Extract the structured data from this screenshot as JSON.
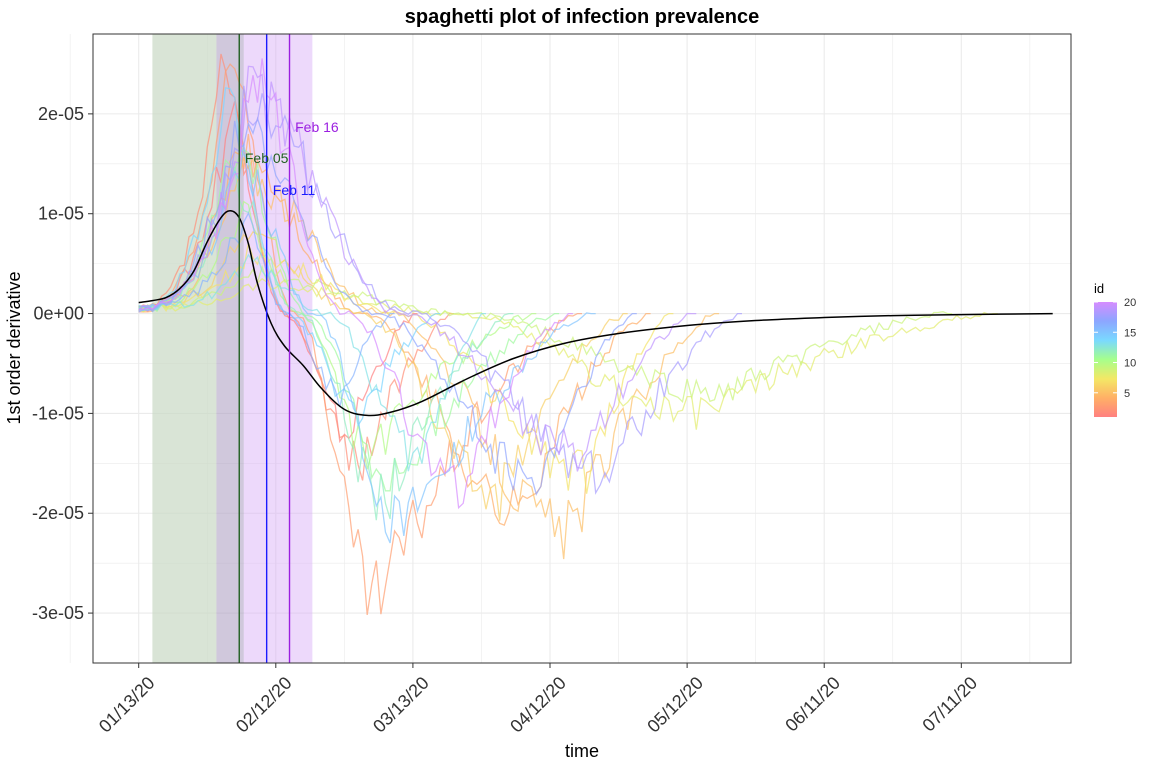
{
  "chart_data": {
    "type": "line",
    "title": "spaghetti plot of infection prevalence",
    "xlabel": "time",
    "ylabel": "1st order derivative",
    "x_range": [
      "2020-01-03",
      "2020-08-04"
    ],
    "ylim": [
      -3.5e-05,
      2.8e-05
    ],
    "x_ticks": [
      {
        "date": "2020-01-13",
        "label": "01/13/20"
      },
      {
        "date": "2020-02-12",
        "label": "02/12/20"
      },
      {
        "date": "2020-03-13",
        "label": "03/13/20"
      },
      {
        "date": "2020-04-12",
        "label": "04/12/20"
      },
      {
        "date": "2020-05-12",
        "label": "05/12/20"
      },
      {
        "date": "2020-06-11",
        "label": "06/11/20"
      },
      {
        "date": "2020-07-11",
        "label": "07/11/20"
      }
    ],
    "y_ticks": [
      {
        "value": 2e-05,
        "label": "2e-05"
      },
      {
        "value": 1e-05,
        "label": "1e-05"
      },
      {
        "value": 0,
        "label": "0e+00"
      },
      {
        "value": -1e-05,
        "label": "-1e-05"
      },
      {
        "value": -2e-05,
        "label": "-2e-05"
      },
      {
        "value": -3e-05,
        "label": "-3e-05"
      }
    ],
    "grid": true,
    "shaded_regions": [
      {
        "start": "2020-01-16",
        "end": "2020-01-30",
        "color": "#c9d8c5",
        "opacity": 0.7
      },
      {
        "start": "2020-01-30",
        "end": "2020-02-05",
        "color": "#a99bc0",
        "opacity": 0.55
      },
      {
        "start": "2020-02-05",
        "end": "2020-02-20",
        "color": "#d8aaf7",
        "opacity": 0.45
      }
    ],
    "vertical_lines": [
      {
        "date": "2020-02-04",
        "color": "#1f5f1f",
        "label": "Feb 05",
        "label_date": "2020-02-10",
        "label_value": 1.56e-05
      },
      {
        "date": "2020-02-10",
        "color": "#1a1aff",
        "label": "Feb 11",
        "label_date": "2020-02-16",
        "label_value": 1.24e-05
      },
      {
        "date": "2020-02-15",
        "color": "#9b1fe0",
        "label": "Feb 16",
        "label_date": "2020-02-21",
        "label_value": 1.87e-05
      }
    ],
    "mean_line": {
      "color": "#000000",
      "points": [
        [
          "2020-01-13",
          1.1e-06
        ],
        [
          "2020-01-16",
          1.3e-06
        ],
        [
          "2020-01-19",
          1.6e-06
        ],
        [
          "2020-01-22",
          2.5e-06
        ],
        [
          "2020-01-25",
          4.2e-06
        ],
        [
          "2020-01-28",
          7.2e-06
        ],
        [
          "2020-01-31",
          9.6e-06
        ],
        [
          "2020-02-02",
          1.03e-05
        ],
        [
          "2020-02-04",
          9.6e-06
        ],
        [
          "2020-02-06",
          7e-06
        ],
        [
          "2020-02-08",
          3e-06
        ],
        [
          "2020-02-11",
          -1e-06
        ],
        [
          "2020-02-14",
          -3.3e-06
        ],
        [
          "2020-02-18",
          -5.2e-06
        ],
        [
          "2020-02-22",
          -7.5e-06
        ],
        [
          "2020-02-27",
          -9.6e-06
        ],
        [
          "2020-03-03",
          -1.02e-05
        ],
        [
          "2020-03-08",
          -9.9e-06
        ],
        [
          "2020-03-15",
          -8.8e-06
        ],
        [
          "2020-03-25",
          -6.5e-06
        ],
        [
          "2020-04-04",
          -4.5e-06
        ],
        [
          "2020-04-15",
          -3e-06
        ],
        [
          "2020-04-27",
          -2e-06
        ],
        [
          "2020-05-12",
          -1.2e-06
        ],
        [
          "2020-05-27",
          -7e-07
        ],
        [
          "2020-06-11",
          -4e-07
        ],
        [
          "2020-06-26",
          -2e-07
        ],
        [
          "2020-07-11",
          -1e-07
        ],
        [
          "2020-07-31",
          0
        ]
      ]
    },
    "legend": {
      "title": "id",
      "placement": "right",
      "min": 1,
      "max": 20,
      "ticks": [
        5,
        10,
        15,
        20
      ],
      "colors": [
        "#ff8080",
        "#ffb066",
        "#f3e866",
        "#a6ff8c",
        "#7ad9ff",
        "#8ca6ff",
        "#d68cff"
      ]
    },
    "series": [
      {
        "id": 1,
        "end": "2020-03-14",
        "peak": [
          2e-05,
          "2020-02-02"
        ],
        "trough": [
          -1.2e-05,
          "2020-02-28"
        ]
      },
      {
        "id": 2,
        "end": "2020-03-22",
        "peak": [
          2.3e-05,
          "2020-01-31"
        ],
        "trough": [
          -1.5e-05,
          "2020-03-02"
        ]
      },
      {
        "id": 3,
        "end": "2020-04-19",
        "peak": [
          2.4e-05,
          "2020-02-02"
        ],
        "trough": [
          -2.9e-05,
          "2020-03-05"
        ]
      },
      {
        "id": 4,
        "end": "2020-05-04",
        "peak": [
          1.6e-05,
          "2020-02-03"
        ],
        "trough": [
          -2e-05,
          "2020-04-05"
        ]
      },
      {
        "id": 5,
        "end": "2020-05-19",
        "peak": [
          1.4e-05,
          "2020-02-04"
        ],
        "trough": [
          -2.2e-05,
          "2020-04-16"
        ]
      },
      {
        "id": 6,
        "end": "2020-04-29",
        "peak": [
          8e-06,
          "2020-02-05"
        ],
        "trough": [
          -1.8e-05,
          "2020-04-01"
        ]
      },
      {
        "id": 7,
        "end": "2020-05-09",
        "peak": [
          6e-06,
          "2020-02-06"
        ],
        "trough": [
          -1.6e-05,
          "2020-04-20"
        ]
      },
      {
        "id": 8,
        "end": "2020-07-19",
        "peak": [
          3e-06,
          "2020-02-07"
        ],
        "trough": [
          -1e-05,
          "2020-05-14"
        ]
      },
      {
        "id": 9,
        "end": "2020-07-09",
        "peak": [
          4e-06,
          "2020-02-05"
        ],
        "trough": [
          -8e-06,
          "2020-05-20"
        ]
      },
      {
        "id": 10,
        "end": "2020-04-09",
        "peak": [
          1e-05,
          "2020-02-04"
        ],
        "trough": [
          -1.4e-05,
          "2020-03-04"
        ]
      },
      {
        "id": 11,
        "end": "2020-04-14",
        "peak": [
          1.7e-05,
          "2020-02-03"
        ],
        "trough": [
          -1.7e-05,
          "2020-03-09"
        ]
      },
      {
        "id": 12,
        "end": "2020-04-04",
        "peak": [
          1.3e-05,
          "2020-02-02"
        ],
        "trough": [
          -1.9e-05,
          "2020-03-07"
        ]
      },
      {
        "id": 13,
        "end": "2020-03-29",
        "peak": [
          5e-06,
          "2020-02-06"
        ],
        "trough": [
          -1.5e-05,
          "2020-03-15"
        ]
      },
      {
        "id": 14,
        "end": "2020-03-19",
        "peak": [
          2.1e-05,
          "2020-02-01"
        ],
        "trough": [
          -1e-05,
          "2020-03-02"
        ]
      },
      {
        "id": 15,
        "end": "2020-04-22",
        "peak": [
          1.5e-05,
          "2020-02-04"
        ],
        "trough": [
          -2.2e-05,
          "2020-03-11"
        ]
      },
      {
        "id": 16,
        "end": "2020-03-09",
        "peak": [
          9e-06,
          "2020-02-05"
        ],
        "trough": [
          -8e-06,
          "2020-02-26"
        ]
      },
      {
        "id": 17,
        "end": "2020-05-01",
        "peak": [
          1.9e-05,
          "2020-02-03"
        ],
        "trough": [
          -1.7e-05,
          "2020-04-10"
        ]
      },
      {
        "id": 18,
        "end": "2020-05-24",
        "peak": [
          2.1e-05,
          "2020-02-05"
        ],
        "trough": [
          -1.6e-05,
          "2020-04-25"
        ]
      },
      {
        "id": 19,
        "end": "2020-05-14",
        "peak": [
          2.2e-05,
          "2020-02-06"
        ],
        "trough": [
          -1.4e-05,
          "2020-04-19"
        ]
      },
      {
        "id": 20,
        "end": "2020-04-17",
        "peak": [
          2.3e-05,
          "2020-02-07"
        ],
        "trough": [
          -1.8e-05,
          "2020-03-23"
        ]
      }
    ]
  }
}
